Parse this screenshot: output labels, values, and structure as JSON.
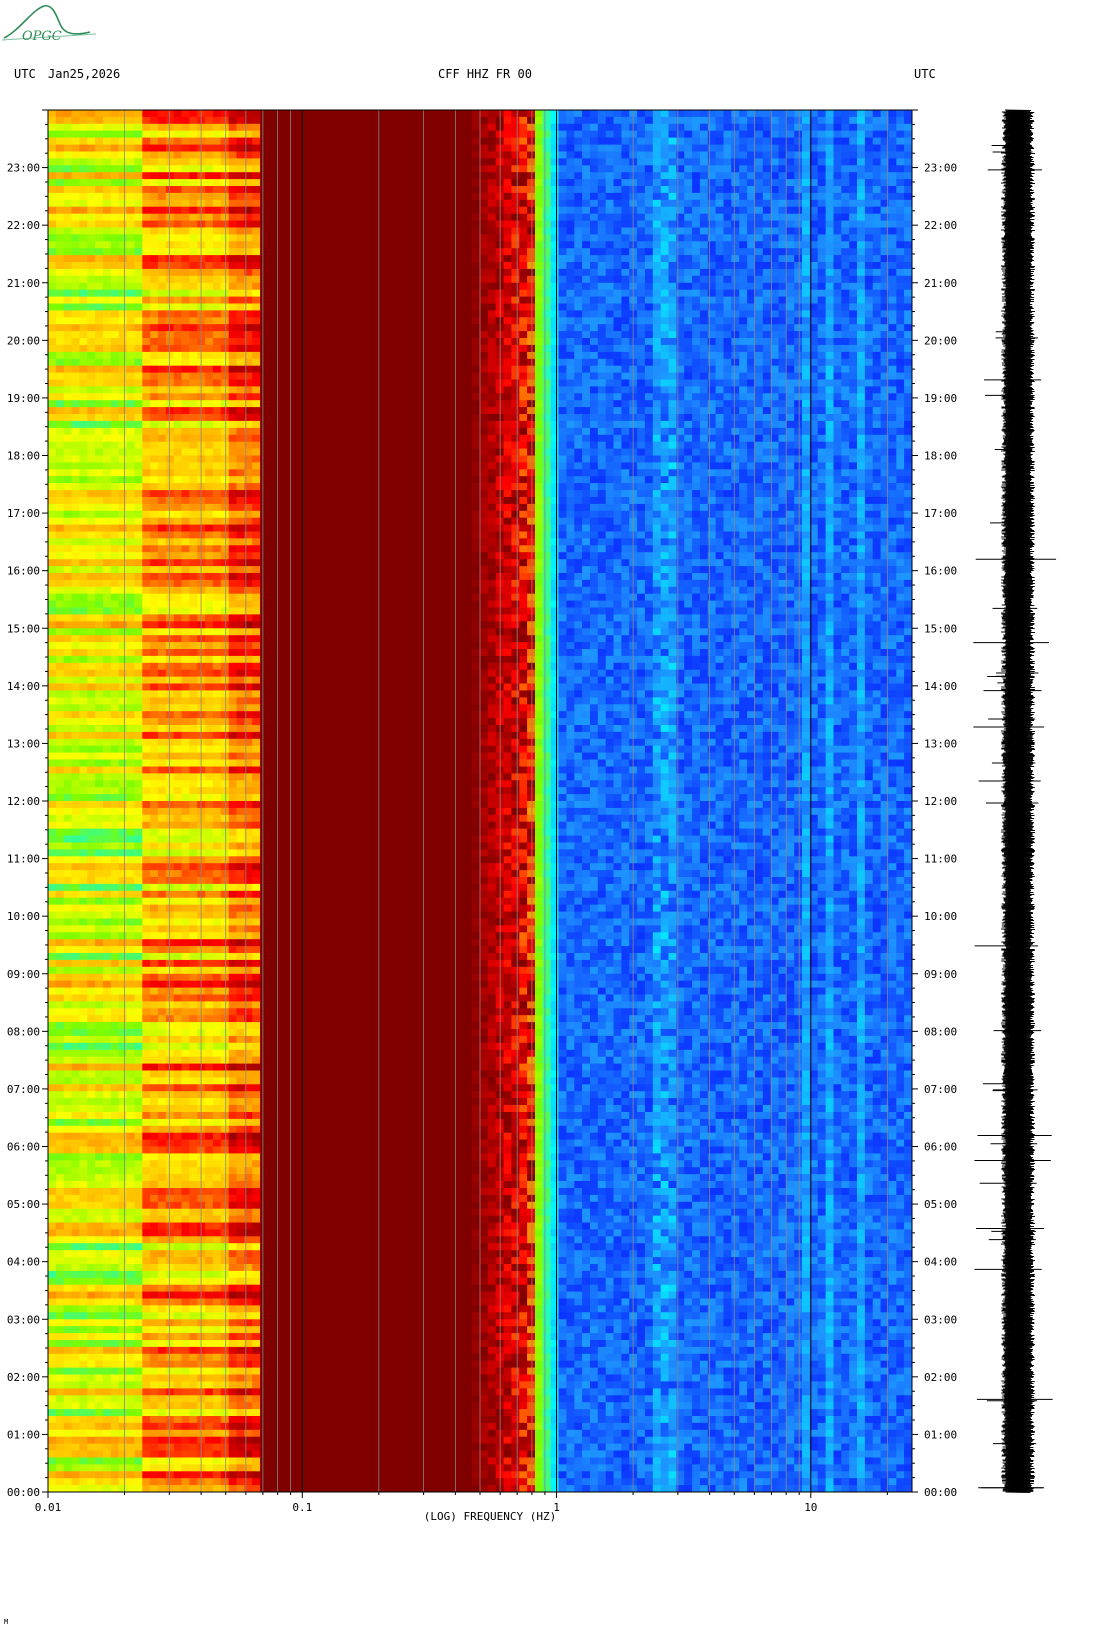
{
  "logo": {
    "text": "OPGC",
    "color": "#2e8b57"
  },
  "header": {
    "left_label": "UTC",
    "date": "Jan25,2026",
    "station": "CFF HHZ FR 00",
    "right_label": "UTC"
  },
  "footer_mark": "M",
  "chart_data": {
    "type": "heatmap",
    "title": "CFF HHZ FR 00",
    "xlabel": "(LOG) FREQUENCY (HZ)",
    "ylabel": "UTC",
    "x_scale": "log",
    "xlim": [
      0.01,
      25
    ],
    "x_ticks": [
      {
        "value": 0.01,
        "label": "0.01"
      },
      {
        "value": 0.1,
        "label": "0.1"
      },
      {
        "value": 1,
        "label": "1"
      },
      {
        "value": 10,
        "label": "10"
      }
    ],
    "ylim_hours": [
      0,
      24
    ],
    "y_ticks": [
      "00:00",
      "01:00",
      "02:00",
      "03:00",
      "04:00",
      "05:00",
      "06:00",
      "07:00",
      "08:00",
      "09:00",
      "10:00",
      "11:00",
      "12:00",
      "13:00",
      "14:00",
      "15:00",
      "16:00",
      "17:00",
      "18:00",
      "19:00",
      "20:00",
      "21:00",
      "22:00",
      "23:00"
    ],
    "colormap": [
      "#00008b",
      "#0000ff",
      "#1e90ff",
      "#00ffff",
      "#7cfc00",
      "#ffff00",
      "#ffa500",
      "#ff0000",
      "#800000"
    ],
    "features": {
      "microseism_peak_hz": 0.8,
      "tremor_band_hz": 2.7,
      "high_freq_bands_hz": [
        9.5,
        12,
        16
      ]
    },
    "grid": true,
    "side_trace": "seismogram (24 h)"
  }
}
